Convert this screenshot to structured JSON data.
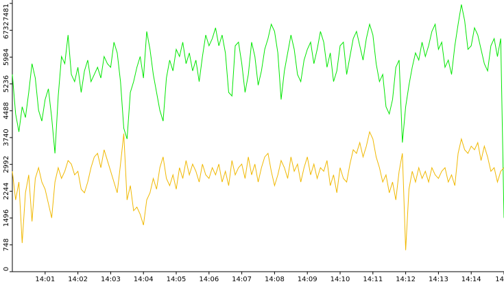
{
  "chart_data": {
    "type": "line",
    "categories": [
      null,
      null,
      null,
      null,
      null,
      null,
      null,
      null,
      null,
      null,
      "14:01",
      null,
      null,
      null,
      null,
      null,
      null,
      null,
      null,
      null,
      "14:02",
      null,
      null,
      null,
      null,
      null,
      null,
      null,
      null,
      null,
      "14:03",
      null,
      null,
      null,
      null,
      null,
      null,
      null,
      null,
      null,
      "14:04",
      null,
      null,
      null,
      null,
      null,
      null,
      null,
      null,
      null,
      "14:05",
      null,
      null,
      null,
      null,
      null,
      null,
      null,
      null,
      null,
      "14:06",
      null,
      null,
      null,
      null,
      null,
      null,
      null,
      null,
      null,
      "14:07",
      null,
      null,
      null,
      null,
      null,
      null,
      null,
      null,
      null,
      "14:08",
      null,
      null,
      null,
      null,
      null,
      null,
      null,
      null,
      null,
      "14:09",
      null,
      null,
      null,
      null,
      null,
      null,
      null,
      null,
      null,
      "14:10",
      null,
      null,
      null,
      null,
      null,
      null,
      null,
      null,
      null,
      "14:11",
      null,
      null,
      null,
      null,
      null,
      null,
      null,
      null,
      null,
      "14:12",
      null,
      null,
      null,
      null,
      null,
      null,
      null,
      null,
      null,
      "14:13",
      null,
      null,
      null,
      null,
      null,
      null,
      null,
      null,
      null,
      "14:14",
      null,
      null,
      null,
      null,
      null,
      null,
      null,
      null,
      null,
      "14"
    ],
    "series": [
      {
        "color": "#00e600",
        "values": [
          5500,
          4400,
          3900,
          4600,
          4300,
          5000,
          5800,
          5400,
          4500,
          4200,
          4800,
          5100,
          4300,
          3300,
          4900,
          6000,
          5800,
          6600,
          5500,
          5300,
          5700,
          5000,
          5600,
          5900,
          5300,
          5500,
          5700,
          5400,
          6000,
          5800,
          5700,
          6400,
          6100,
          5300,
          4000,
          3700,
          5000,
          5300,
          5700,
          6000,
          5400,
          6700,
          6200,
          5500,
          5000,
          4500,
          4200,
          5400,
          5900,
          5600,
          6200,
          6000,
          6400,
          5800,
          6100,
          5600,
          5900,
          5300,
          6000,
          6600,
          6300,
          6500,
          6800,
          6300,
          6600,
          6100,
          5000,
          4900,
          6300,
          6400,
          5800,
          5000,
          5500,
          6400,
          6000,
          5200,
          5600,
          6200,
          6500,
          6900,
          6700,
          6100,
          4800,
          5600,
          6100,
          6600,
          6200,
          5500,
          5300,
          5900,
          6200,
          6400,
          5800,
          6200,
          6700,
          6400,
          5700,
          6100,
          5300,
          5600,
          6300,
          6400,
          5500,
          6000,
          6500,
          6700,
          6300,
          5900,
          6500,
          6900,
          6600,
          5800,
          5300,
          5500,
          4600,
          4400,
          4800,
          5700,
          5900,
          3600,
          4600,
          5200,
          5700,
          6100,
          5900,
          6400,
          6000,
          6300,
          6700,
          6900,
          6200,
          6400,
          5700,
          5900,
          5500,
          6300,
          6900,
          7450,
          7000,
          6200,
          6300,
          6800,
          6600,
          6200,
          5800,
          5600,
          6300,
          6500,
          6000,
          6500,
          1500
        ]
      },
      {
        "color": "#f0b800",
        "values": [
          2800,
          2000,
          2500,
          800,
          2200,
          2700,
          1400,
          2600,
          2900,
          2500,
          2300,
          1900,
          1500,
          2500,
          2900,
          2600,
          2800,
          3100,
          3000,
          2700,
          2800,
          2300,
          2200,
          2500,
          2900,
          3200,
          3300,
          2900,
          3400,
          3100,
          2800,
          2500,
          2200,
          3000,
          3850,
          2000,
          2400,
          1700,
          1800,
          1600,
          1300,
          2000,
          2200,
          2600,
          2300,
          2900,
          3200,
          2600,
          2400,
          2700,
          2300,
          2900,
          2600,
          3100,
          2700,
          3000,
          2800,
          2500,
          3000,
          2700,
          2600,
          2900,
          2700,
          3000,
          2500,
          2800,
          2400,
          3100,
          2700,
          2900,
          3000,
          2600,
          3200,
          2700,
          3000,
          2500,
          2900,
          3200,
          3300,
          2800,
          2400,
          2700,
          3100,
          2900,
          2600,
          3200,
          2800,
          3000,
          2500,
          2900,
          3200,
          2700,
          3000,
          2600,
          2900,
          2800,
          3100,
          2400,
          2700,
          2200,
          2900,
          2600,
          2500,
          3000,
          3400,
          3300,
          3600,
          3200,
          3500,
          3900,
          3700,
          3200,
          2900,
          2500,
          2700,
          2200,
          2500,
          2000,
          2800,
          3300,
          600,
          2300,
          2800,
          2500,
          2900,
          2600,
          2800,
          2500,
          2900,
          2700,
          2600,
          2800,
          2900,
          2500,
          2700,
          2400,
          3300,
          3700,
          3400,
          3300,
          3500,
          3400,
          3600,
          3100,
          3500,
          3200,
          2800,
          2900,
          2500,
          2800,
          2900
        ]
      }
    ],
    "ylim": [
      0,
      7481
    ],
    "yticks": [
      0,
      748,
      1496,
      2244,
      2992,
      3740,
      4488,
      5236,
      5984,
      6732,
      7481
    ],
    "grid": false
  }
}
